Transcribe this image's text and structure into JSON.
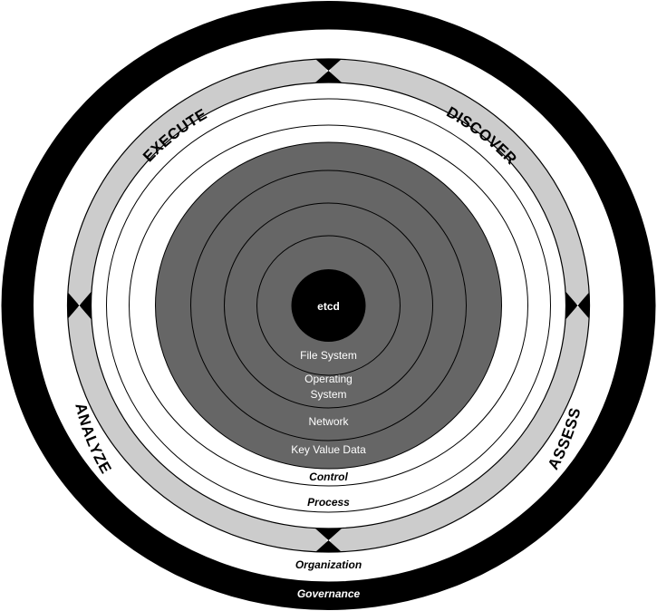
{
  "diagram": {
    "core": "etcd",
    "layers": [
      "File System",
      "Operating System",
      "Network",
      "Key Value Data"
    ],
    "operating_system_lines": [
      "Operating",
      "System"
    ],
    "rings": {
      "control": "Control",
      "process": "Process",
      "organization": "Organization",
      "governance": "Governance"
    },
    "phases": {
      "discover": "DISCOVER",
      "assess": "ASSESS",
      "analyze": "ANALYZE",
      "execute": "EXECUTE"
    },
    "colors": {
      "governance_ring": "#000000",
      "phase_band": "#cccccc",
      "inner_disk": "#666666",
      "core": "#000000"
    }
  }
}
